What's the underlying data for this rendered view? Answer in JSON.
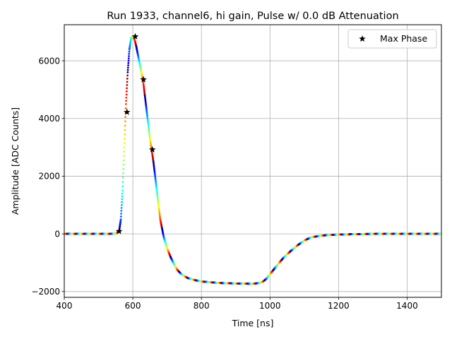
{
  "chart_data": {
    "type": "scatter",
    "title": "Run 1933, channel6, hi gain, Pulse w/ 0.0 dB Attenuation",
    "xlabel": "Time [ns]",
    "ylabel": "Amplitude [ADC Counts]",
    "xlim": [
      400,
      1500
    ],
    "ylim": [
      -2200,
      7250
    ],
    "xticks": [
      400,
      600,
      800,
      1000,
      1200,
      1400
    ],
    "yticks": [
      -2000,
      0,
      2000,
      4000,
      6000
    ],
    "xtick_labels": [
      "400",
      "600",
      "800",
      "1000",
      "1200",
      "1400"
    ],
    "ytick_labels": [
      "−2000",
      "0",
      "2000",
      "4000",
      "6000"
    ],
    "grid": true,
    "legend_position": "top-right",
    "colormap": "jet",
    "series": [
      {
        "kind": "pulse-waveform",
        "marker": "dot",
        "x": [
          400,
          500,
          550,
          560,
          565,
          570,
          575,
          580,
          585,
          590,
          595,
          600,
          605,
          610,
          615,
          620,
          625,
          630,
          635,
          640,
          645,
          650,
          655,
          660,
          665,
          670,
          675,
          680,
          690,
          700,
          710,
          720,
          730,
          740,
          750,
          760,
          780,
          800,
          850,
          900,
          950,
          970,
          980,
          990,
          1000,
          1010,
          1020,
          1040,
          1060,
          1080,
          1100,
          1120,
          1150,
          1200,
          1300,
          1400,
          1500
        ],
        "y": [
          0,
          0,
          0,
          100,
          500,
          1500,
          3000,
          4500,
          5600,
          6400,
          6800,
          6850,
          6750,
          6500,
          6200,
          5900,
          5600,
          5300,
          4800,
          4300,
          3800,
          3300,
          2900,
          2500,
          2000,
          1500,
          1000,
          500,
          -100,
          -500,
          -800,
          -1050,
          -1250,
          -1380,
          -1460,
          -1530,
          -1600,
          -1650,
          -1700,
          -1720,
          -1730,
          -1700,
          -1650,
          -1550,
          -1400,
          -1250,
          -1100,
          -820,
          -600,
          -400,
          -230,
          -120,
          -60,
          -20,
          0,
          0,
          0
        ]
      },
      {
        "name": "Max Phase",
        "kind": "max-phase-markers",
        "marker": "star",
        "color": "#000000",
        "x": [
          560,
          583,
          607,
          631,
          657
        ],
        "y": [
          90,
          4220,
          6840,
          5350,
          2920
        ]
      }
    ]
  }
}
